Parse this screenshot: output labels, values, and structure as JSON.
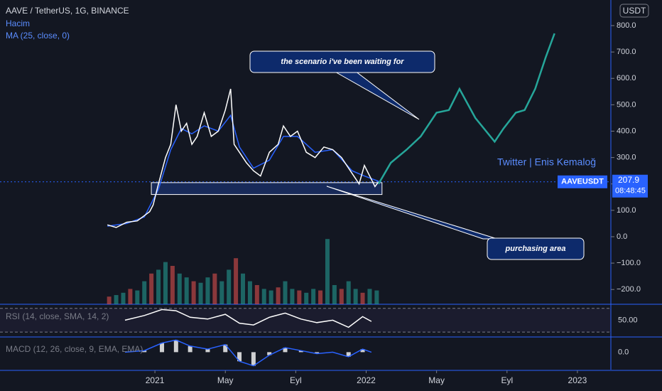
{
  "chart_data": {
    "type": "line",
    "title": "AAVE / TetherUS, 1G, BINANCE",
    "legend_lines": [
      "Hacim",
      "MA (25, close, 0)"
    ],
    "currency": "USDT",
    "watermark": "Twitter | Enis Kemaloğ",
    "xlim": [
      -8.8,
      25.9
    ],
    "xticks": [
      {
        "value": 0,
        "label": "2021"
      },
      {
        "value": 4,
        "label": "May"
      },
      {
        "value": 8,
        "label": "Eyl"
      },
      {
        "value": 12,
        "label": "2022"
      },
      {
        "value": 16,
        "label": "May"
      },
      {
        "value": 20,
        "label": "Eyl"
      },
      {
        "value": 24,
        "label": "2023"
      }
    ],
    "ylim": [
      -256,
      897
    ],
    "yticks": [
      {
        "value": 800,
        "label": "800.0"
      },
      {
        "value": 700,
        "label": "700.0"
      },
      {
        "value": 600,
        "label": "600.0"
      },
      {
        "value": 500,
        "label": "500.0"
      },
      {
        "value": 400,
        "label": "400.0"
      },
      {
        "value": 300,
        "label": "300.0"
      },
      {
        "value": 200,
        "label": "200.0"
      },
      {
        "value": 100,
        "label": "100.0"
      },
      {
        "value": 0,
        "label": "0.0"
      },
      {
        "value": -100,
        "label": "−100.0"
      },
      {
        "value": -200,
        "label": "−200.0"
      }
    ],
    "series": [
      {
        "name": "AAVEUSDT",
        "color": "#ffffff",
        "x": [
          -2.7,
          -2.2,
          -1.6,
          -1.0,
          -0.6,
          -0.3,
          -0.1,
          0.2,
          0.6,
          0.9,
          1.2,
          1.5,
          1.8,
          2.1,
          2.4,
          2.8,
          3.2,
          3.6,
          4.0,
          4.3,
          4.5,
          4.8,
          5.2,
          5.6,
          6.0,
          6.5,
          7.0,
          7.3,
          7.7,
          8.1,
          8.6,
          9.1,
          9.6,
          10.1,
          10.6,
          11.2,
          11.6,
          11.9,
          12.2,
          12.5,
          12.7
        ],
        "values": [
          45,
          35,
          55,
          60,
          80,
          95,
          120,
          200,
          300,
          350,
          500,
          400,
          430,
          350,
          380,
          470,
          380,
          400,
          480,
          560,
          350,
          320,
          280,
          250,
          230,
          320,
          350,
          420,
          380,
          400,
          320,
          300,
          340,
          330,
          300,
          240,
          200,
          270,
          230,
          190,
          207.9
        ]
      }
    ],
    "ma": {
      "color": "#2962ff",
      "x": [
        -2.7,
        -1.6,
        -0.6,
        0.2,
        0.9,
        1.5,
        2.1,
        2.8,
        3.6,
        4.3,
        4.8,
        5.6,
        6.5,
        7.3,
        8.1,
        9.1,
        10.1,
        11.2,
        11.9,
        12.7
      ],
      "values": [
        40,
        50,
        75,
        180,
        330,
        410,
        390,
        420,
        400,
        460,
        340,
        260,
        290,
        380,
        380,
        320,
        330,
        250,
        230,
        210
      ]
    },
    "projection": {
      "color": "#26a69a",
      "x": [
        12.7,
        13.4,
        14.3,
        15.1,
        16.0,
        16.7,
        17.3,
        18.2,
        19.3,
        19.8,
        20.5,
        21.0,
        21.6,
        22.2,
        22.7
      ],
      "values": [
        200,
        280,
        330,
        380,
        470,
        480,
        560,
        450,
        360,
        410,
        470,
        480,
        560,
        680,
        770
      ]
    },
    "zone": [
      160,
      205
    ],
    "last_price": {
      "value": 207.9,
      "label": "207.9",
      "symbol": "AAVEUSDT",
      "timer": "08:48:45"
    },
    "annotations": [
      {
        "text": "the scenario i've been waiting for"
      },
      {
        "text": "purchasing area"
      }
    ],
    "volume": {
      "ylim": [
        0,
        100
      ],
      "color": "#26a69a",
      "x": [
        -2.6,
        -2.2,
        -1.8,
        -1.4,
        -1.0,
        -0.6,
        -0.2,
        0.2,
        0.6,
        1.0,
        1.4,
        1.8,
        2.2,
        2.6,
        3.0,
        3.4,
        3.8,
        4.2,
        4.6,
        5.0,
        5.4,
        5.8,
        6.2,
        6.6,
        7.0,
        7.4,
        7.8,
        8.2,
        8.6,
        9.0,
        9.4,
        9.8,
        10.2,
        10.6,
        11.0,
        11.4,
        11.8,
        12.2,
        12.6
      ],
      "values": [
        10,
        12,
        15,
        20,
        18,
        30,
        40,
        45,
        55,
        50,
        40,
        35,
        30,
        28,
        35,
        40,
        30,
        45,
        60,
        40,
        30,
        25,
        20,
        18,
        22,
        30,
        20,
        18,
        15,
        20,
        18,
        85,
        25,
        20,
        30,
        20,
        15,
        20,
        18
      ]
    },
    "rsi": {
      "title": "RSI (14, close, SMA, 14, 2)",
      "ylim": [
        21.7,
        76.9
      ],
      "yticks": [
        {
          "value": 50,
          "label": "50.00"
        }
      ],
      "bands": [
        70,
        30
      ],
      "color": "#ffffff",
      "x": [
        -1.7,
        -0.6,
        0.4,
        1.2,
        2.0,
        3.0,
        4.0,
        4.8,
        5.6,
        6.5,
        7.4,
        8.3,
        9.2,
        10.1,
        11.0,
        11.8,
        12.3
      ],
      "values": [
        50,
        58,
        68,
        66,
        55,
        52,
        60,
        45,
        42,
        55,
        62,
        52,
        46,
        50,
        38,
        56,
        48
      ]
    },
    "macd": {
      "title": "MACD (12, 26, close, 9, EMA, EMA)",
      "ylim": [
        -60,
        50
      ],
      "yticks": [
        {
          "value": 0,
          "label": "0.0"
        }
      ],
      "color": "#2962ff",
      "x": [
        -1.7,
        -0.6,
        0.4,
        1.2,
        2.0,
        3.0,
        4.0,
        4.8,
        5.6,
        6.5,
        7.4,
        8.3,
        9.2,
        10.1,
        11.0,
        11.8,
        12.3
      ],
      "values": [
        0,
        5,
        30,
        40,
        20,
        10,
        25,
        -30,
        -45,
        -10,
        15,
        5,
        -5,
        0,
        -15,
        10,
        0
      ]
    }
  }
}
